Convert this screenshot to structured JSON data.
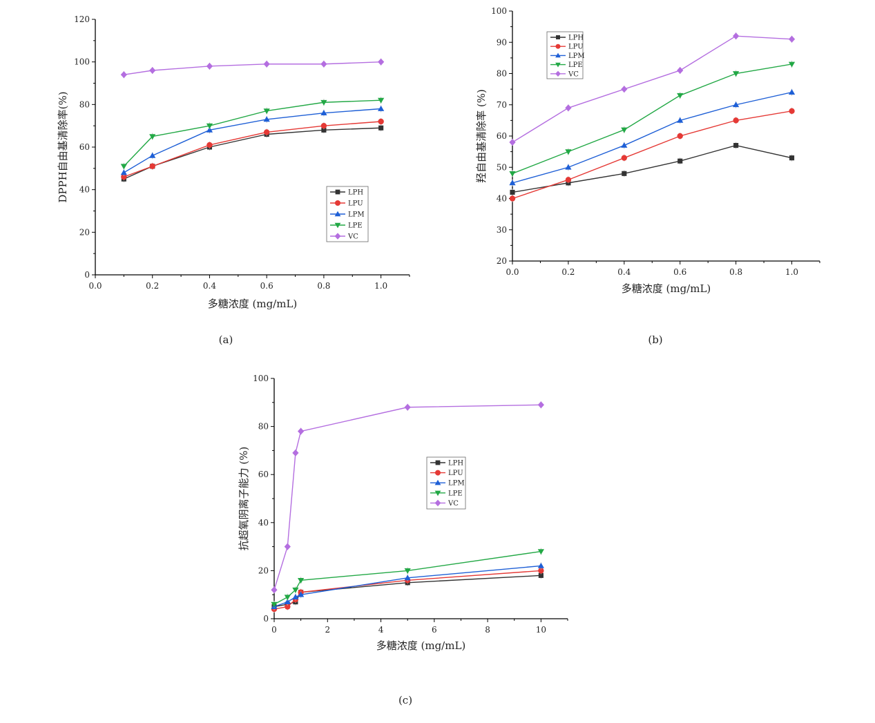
{
  "captions": {
    "a": "(a)",
    "b": "(b)",
    "c": "(c)"
  },
  "series_styles": [
    {
      "name": "LPH",
      "color": "#333333",
      "marker": "square"
    },
    {
      "name": "LPU",
      "color": "#e53935",
      "marker": "circle"
    },
    {
      "name": "LPM",
      "color": "#1e5fd6",
      "marker": "triangle-up"
    },
    {
      "name": "LPE",
      "color": "#22a845",
      "marker": "triangle-down"
    },
    {
      "name": "VC",
      "color": "#b46ee0",
      "marker": "diamond"
    }
  ],
  "chart_data": [
    {
      "id": "a",
      "type": "line",
      "xlabel": "多糖浓度 (mg/mL)",
      "ylabel": "DPPH自由基清除率(%)",
      "xlim": [
        0,
        1.1
      ],
      "ylim": [
        0,
        120
      ],
      "xticks": [
        0,
        0.2,
        0.4,
        0.6,
        0.8,
        1.0
      ],
      "xtick_labels": [
        "0.0",
        "0.2",
        "0.4",
        "0.6",
        "0.8",
        "1.0"
      ],
      "yticks": [
        0,
        20,
        40,
        60,
        80,
        100,
        120
      ],
      "legend": "right-middle",
      "x": [
        0.1,
        0.2,
        0.4,
        0.6,
        0.8,
        1.0
      ],
      "series": [
        {
          "name": "LPH",
          "values": [
            45,
            51,
            60,
            66,
            68,
            69
          ]
        },
        {
          "name": "LPU",
          "values": [
            46,
            51,
            61,
            67,
            70,
            72
          ]
        },
        {
          "name": "LPM",
          "values": [
            48,
            56,
            68,
            73,
            76,
            78
          ]
        },
        {
          "name": "LPE",
          "values": [
            51,
            65,
            70,
            77,
            81,
            82
          ]
        },
        {
          "name": "VC",
          "values": [
            94,
            96,
            98,
            99,
            99,
            100
          ]
        }
      ]
    },
    {
      "id": "b",
      "type": "line",
      "xlabel": "多糖浓度 (mg/mL)",
      "ylabel": "羟自由基清除率 (%)",
      "xlim": [
        0,
        1.1
      ],
      "ylim": [
        20,
        100
      ],
      "xticks": [
        0,
        0.2,
        0.4,
        0.6,
        0.8,
        1.0
      ],
      "xtick_labels": [
        "0.0",
        "0.2",
        "0.4",
        "0.6",
        "0.8",
        "1.0"
      ],
      "yticks": [
        20,
        30,
        40,
        50,
        60,
        70,
        80,
        90,
        100
      ],
      "legend": "top-left",
      "x": [
        0,
        0.2,
        0.4,
        0.6,
        0.8,
        1.0
      ],
      "series": [
        {
          "name": "LPH",
          "values": [
            42,
            45,
            48,
            52,
            57,
            53
          ]
        },
        {
          "name": "LPU",
          "values": [
            40,
            46,
            53,
            60,
            65,
            68
          ]
        },
        {
          "name": "LPM",
          "values": [
            45,
            50,
            57,
            65,
            70,
            74
          ]
        },
        {
          "name": "LPE",
          "values": [
            48,
            55,
            62,
            73,
            80,
            83
          ]
        },
        {
          "name": "VC",
          "values": [
            58,
            69,
            75,
            81,
            92,
            91
          ]
        }
      ]
    },
    {
      "id": "c",
      "type": "line",
      "xlabel": "多糖浓度 (mg/mL)",
      "ylabel": "抗超氧阴离子能力 (%)",
      "xlim": [
        0,
        11
      ],
      "ylim": [
        0,
        100
      ],
      "xticks": [
        0,
        2,
        4,
        6,
        8,
        10
      ],
      "xtick_labels": [
        "0",
        "2",
        "4",
        "6",
        "8",
        "10"
      ],
      "yticks": [
        0,
        20,
        40,
        60,
        80,
        100
      ],
      "legend": "center",
      "x": [
        0,
        0.5,
        0.8,
        1,
        5,
        10
      ],
      "series": [
        {
          "name": "LPH",
          "values": [
            5,
            6,
            7,
            11,
            15,
            18
          ]
        },
        {
          "name": "LPU",
          "values": [
            4,
            5,
            8,
            11,
            16,
            20
          ]
        },
        {
          "name": "LPM",
          "values": [
            5,
            7,
            9,
            10,
            17,
            22
          ]
        },
        {
          "name": "LPE",
          "values": [
            6,
            9,
            12,
            16,
            20,
            28
          ]
        },
        {
          "name": "VC",
          "values": [
            12,
            30,
            69,
            78,
            88,
            89
          ]
        }
      ]
    }
  ]
}
